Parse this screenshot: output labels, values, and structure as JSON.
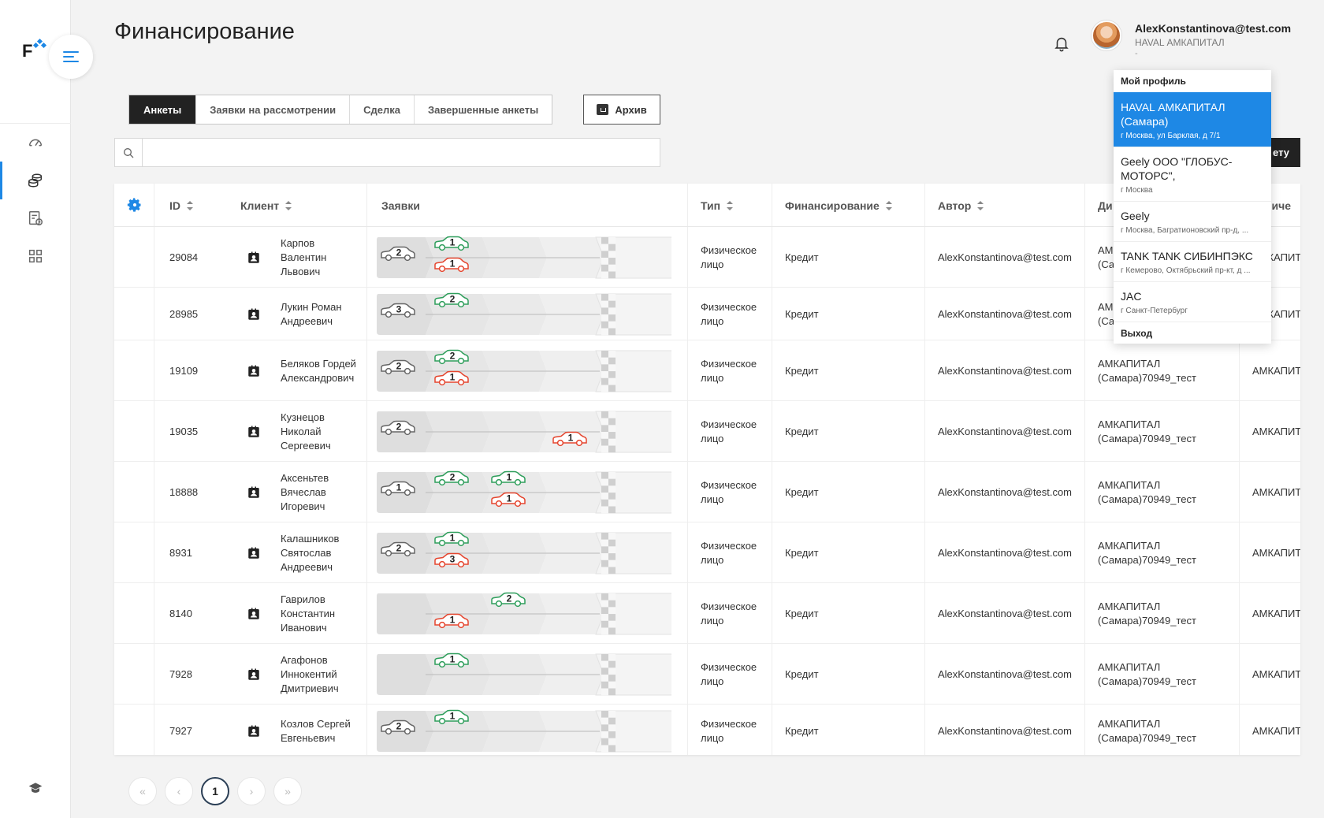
{
  "header": {
    "title": "Финансирование",
    "user_email": "AlexKonstantinova@test.com",
    "user_company": "HAVAL АМКАПИТАЛ",
    "user_sub": "-"
  },
  "tabs": [
    {
      "label": "Анкеты",
      "active": true
    },
    {
      "label": "Заявки на рассмотрении",
      "active": false
    },
    {
      "label": "Сделка",
      "active": false
    },
    {
      "label": "Завершенные анкеты",
      "active": false
    }
  ],
  "archive_label": "Архив",
  "search": {
    "placeholder": ""
  },
  "create_label": "ету",
  "columns": {
    "id": "ID",
    "client": "Клиент",
    "requests": "Заявки",
    "type": "Тип",
    "financing": "Финансирование",
    "author": "Автор",
    "dealer": "Ди",
    "legal": "юриче"
  },
  "rows": [
    {
      "id": "29084",
      "client": "Карпов Валентин Львович",
      "type": "Физическое лицо",
      "financing": "Кредит",
      "author": "AlexKonstantinova@test.com",
      "dealer": "АМКАПИТАЛ (Самара)70949_тест",
      "legal": "АМКАПИТ",
      "cars": [
        {
          "color": "gray",
          "n": "2",
          "stage": 0,
          "pos": "mid"
        },
        {
          "color": "green",
          "n": "1",
          "stage": 1,
          "pos": "top"
        },
        {
          "color": "red",
          "n": "1",
          "stage": 1,
          "pos": "bot"
        }
      ]
    },
    {
      "id": "28985",
      "client": "Лукин Роман Андреевич",
      "type": "Физическое лицо",
      "financing": "Кредит",
      "author": "AlexKonstantinova@test.com",
      "dealer": "АМКАПИТАЛ (Самара)70949_тест",
      "legal": "АМКАПИТ",
      "cars": [
        {
          "color": "gray",
          "n": "3",
          "stage": 0,
          "pos": "mid"
        },
        {
          "color": "green",
          "n": "2",
          "stage": 1,
          "pos": "top"
        }
      ]
    },
    {
      "id": "19109",
      "client": "Беляков Гордей Александрович",
      "type": "Физическое лицо",
      "financing": "Кредит",
      "author": "AlexKonstantinova@test.com",
      "dealer": "АМКАПИТАЛ (Самара)70949_тест",
      "legal": "АМКАПИТ",
      "cars": [
        {
          "color": "gray",
          "n": "2",
          "stage": 0,
          "pos": "mid"
        },
        {
          "color": "green",
          "n": "2",
          "stage": 1,
          "pos": "top"
        },
        {
          "color": "red",
          "n": "1",
          "stage": 1,
          "pos": "bot"
        }
      ]
    },
    {
      "id": "19035",
      "client": "Кузнецов Николай Сергеевич",
      "type": "Физическое лицо",
      "financing": "Кредит",
      "author": "AlexKonstantinova@test.com",
      "dealer": "АМКАПИТАЛ (Самара)70949_тест",
      "legal": "АМКАПИТ",
      "cars": [
        {
          "color": "gray",
          "n": "2",
          "stage": 0,
          "pos": "mid"
        },
        {
          "color": "red",
          "n": "1",
          "stage": 3,
          "pos": "bot"
        }
      ]
    },
    {
      "id": "18888",
      "client": "Аксеньтев Вячеслав Игоревич",
      "type": "Физическое лицо",
      "financing": "Кредит",
      "author": "AlexKonstantinova@test.com",
      "dealer": "АМКАПИТАЛ (Самара)70949_тест",
      "legal": "АМКАПИТ",
      "cars": [
        {
          "color": "gray",
          "n": "1",
          "stage": 0,
          "pos": "mid"
        },
        {
          "color": "green",
          "n": "2",
          "stage": 1,
          "pos": "top"
        },
        {
          "color": "green",
          "n": "1",
          "stage": 2,
          "pos": "top"
        },
        {
          "color": "red",
          "n": "1",
          "stage": 2,
          "pos": "bot"
        }
      ]
    },
    {
      "id": "8931",
      "client": "Калашников Святослав Андреевич",
      "type": "Физическое лицо",
      "financing": "Кредит",
      "author": "AlexKonstantinova@test.com",
      "dealer": "АМКАПИТАЛ (Самара)70949_тест",
      "legal": "АМКАПИТ",
      "cars": [
        {
          "color": "gray",
          "n": "2",
          "stage": 0,
          "pos": "mid"
        },
        {
          "color": "green",
          "n": "1",
          "stage": 1,
          "pos": "top"
        },
        {
          "color": "red",
          "n": "3",
          "stage": 1,
          "pos": "bot"
        }
      ]
    },
    {
      "id": "8140",
      "client": "Гаврилов Константин Иванович",
      "type": "Физическое лицо",
      "financing": "Кредит",
      "author": "AlexKonstantinova@test.com",
      "dealer": "АМКАПИТАЛ (Самара)70949_тест",
      "legal": "АМКАПИТ",
      "cars": [
        {
          "color": "green",
          "n": "2",
          "stage": 2,
          "pos": "top"
        },
        {
          "color": "red",
          "n": "1",
          "stage": 1,
          "pos": "bot"
        }
      ]
    },
    {
      "id": "7928",
      "client": "Агафонов Иннокентий Дмитриевич",
      "type": "Физическое лицо",
      "financing": "Кредит",
      "author": "AlexKonstantinova@test.com",
      "dealer": "АМКАПИТАЛ (Самара)70949_тест",
      "legal": "АМКАПИТ",
      "cars": [
        {
          "color": "green",
          "n": "1",
          "stage": 1,
          "pos": "top"
        }
      ]
    },
    {
      "id": "7927",
      "client": "Козлов Сергей Евгеньевич",
      "type": "Физическое лицо",
      "financing": "Кредит",
      "author": "AlexKonstantinova@test.com",
      "dealer": "АМКАПИТАЛ (Самара)70949_тест",
      "legal": "АМКАПИТ",
      "cars": [
        {
          "color": "gray",
          "n": "2",
          "stage": 0,
          "pos": "mid"
        },
        {
          "color": "green",
          "n": "1",
          "stage": 1,
          "pos": "top"
        }
      ]
    }
  ],
  "pagination": {
    "current": "1",
    "first": "«",
    "prev": "‹",
    "next": "›",
    "last": "»"
  },
  "dropdown": {
    "profile": "Мой профиль",
    "items": [
      {
        "name": "HAVAL АМКАПИТАЛ (Самара)",
        "address": "г Москва, ул Барклая, д 7/1",
        "active": true
      },
      {
        "name": "Geely ООО \"ГЛОБУС-МОТОРС\",",
        "address": "г Москва",
        "active": false
      },
      {
        "name": "Geely",
        "address": "г Москва, Багратионовский пр-д, ...",
        "active": false
      },
      {
        "name": "TANK TANK СИБИНПЭКС",
        "address": "г Кемерово, Октябрьский пр-кт, д ...",
        "active": false
      },
      {
        "name": "JAC",
        "address": "г Санкт-Петербург",
        "active": false
      }
    ],
    "logout": "Выход"
  },
  "colors": {
    "accent": "#1e88e5",
    "green": "#2e9e5b",
    "red": "#e5452e",
    "gray": "#666666"
  }
}
